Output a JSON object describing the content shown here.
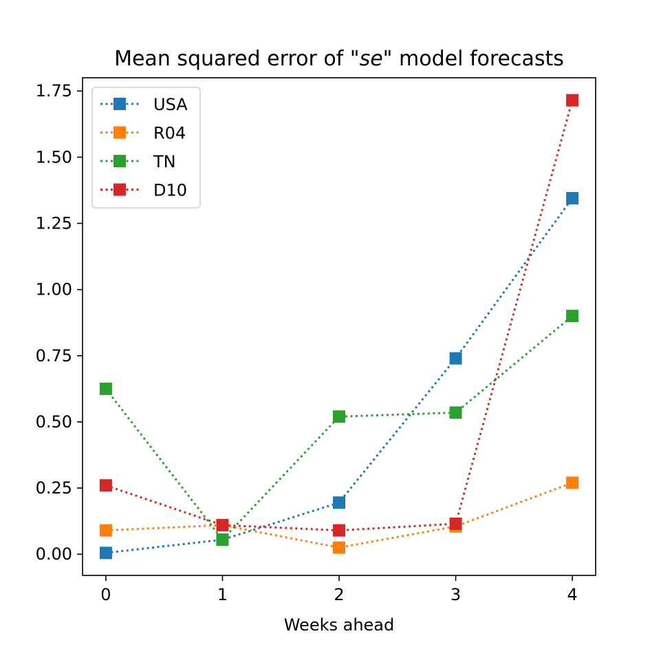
{
  "chart_data": {
    "type": "line",
    "title_prefix": "Mean squared error of \"",
    "title_italic": "se",
    "title_suffix": "\" model forecasts",
    "xlabel": "Weeks ahead",
    "ylabel": "",
    "x": [
      0,
      1,
      2,
      3,
      4
    ],
    "xlim": [
      -0.2,
      4.2
    ],
    "ylim": [
      -0.08,
      1.8
    ],
    "xticks": [
      "0",
      "1",
      "2",
      "3",
      "4"
    ],
    "yticks": [
      "0.00",
      "0.25",
      "0.50",
      "0.75",
      "1.00",
      "1.25",
      "1.50",
      "1.75"
    ],
    "ytick_values": [
      0,
      0.25,
      0.5,
      0.75,
      1.0,
      1.25,
      1.5,
      1.75
    ],
    "legend_position": "top-left",
    "grid": false,
    "series": [
      {
        "name": "USA",
        "color": "#1f77b4",
        "values": [
          0.005,
          0.055,
          0.195,
          0.74,
          1.345
        ]
      },
      {
        "name": "R04",
        "color": "#ff7f0e",
        "values": [
          0.09,
          0.11,
          0.025,
          0.105,
          0.27
        ]
      },
      {
        "name": "TN",
        "color": "#2ca02c",
        "values": [
          0.625,
          0.055,
          0.52,
          0.535,
          0.9
        ]
      },
      {
        "name": "D10",
        "color": "#d62728",
        "values": [
          0.26,
          0.11,
          0.09,
          0.115,
          1.715
        ]
      }
    ]
  }
}
